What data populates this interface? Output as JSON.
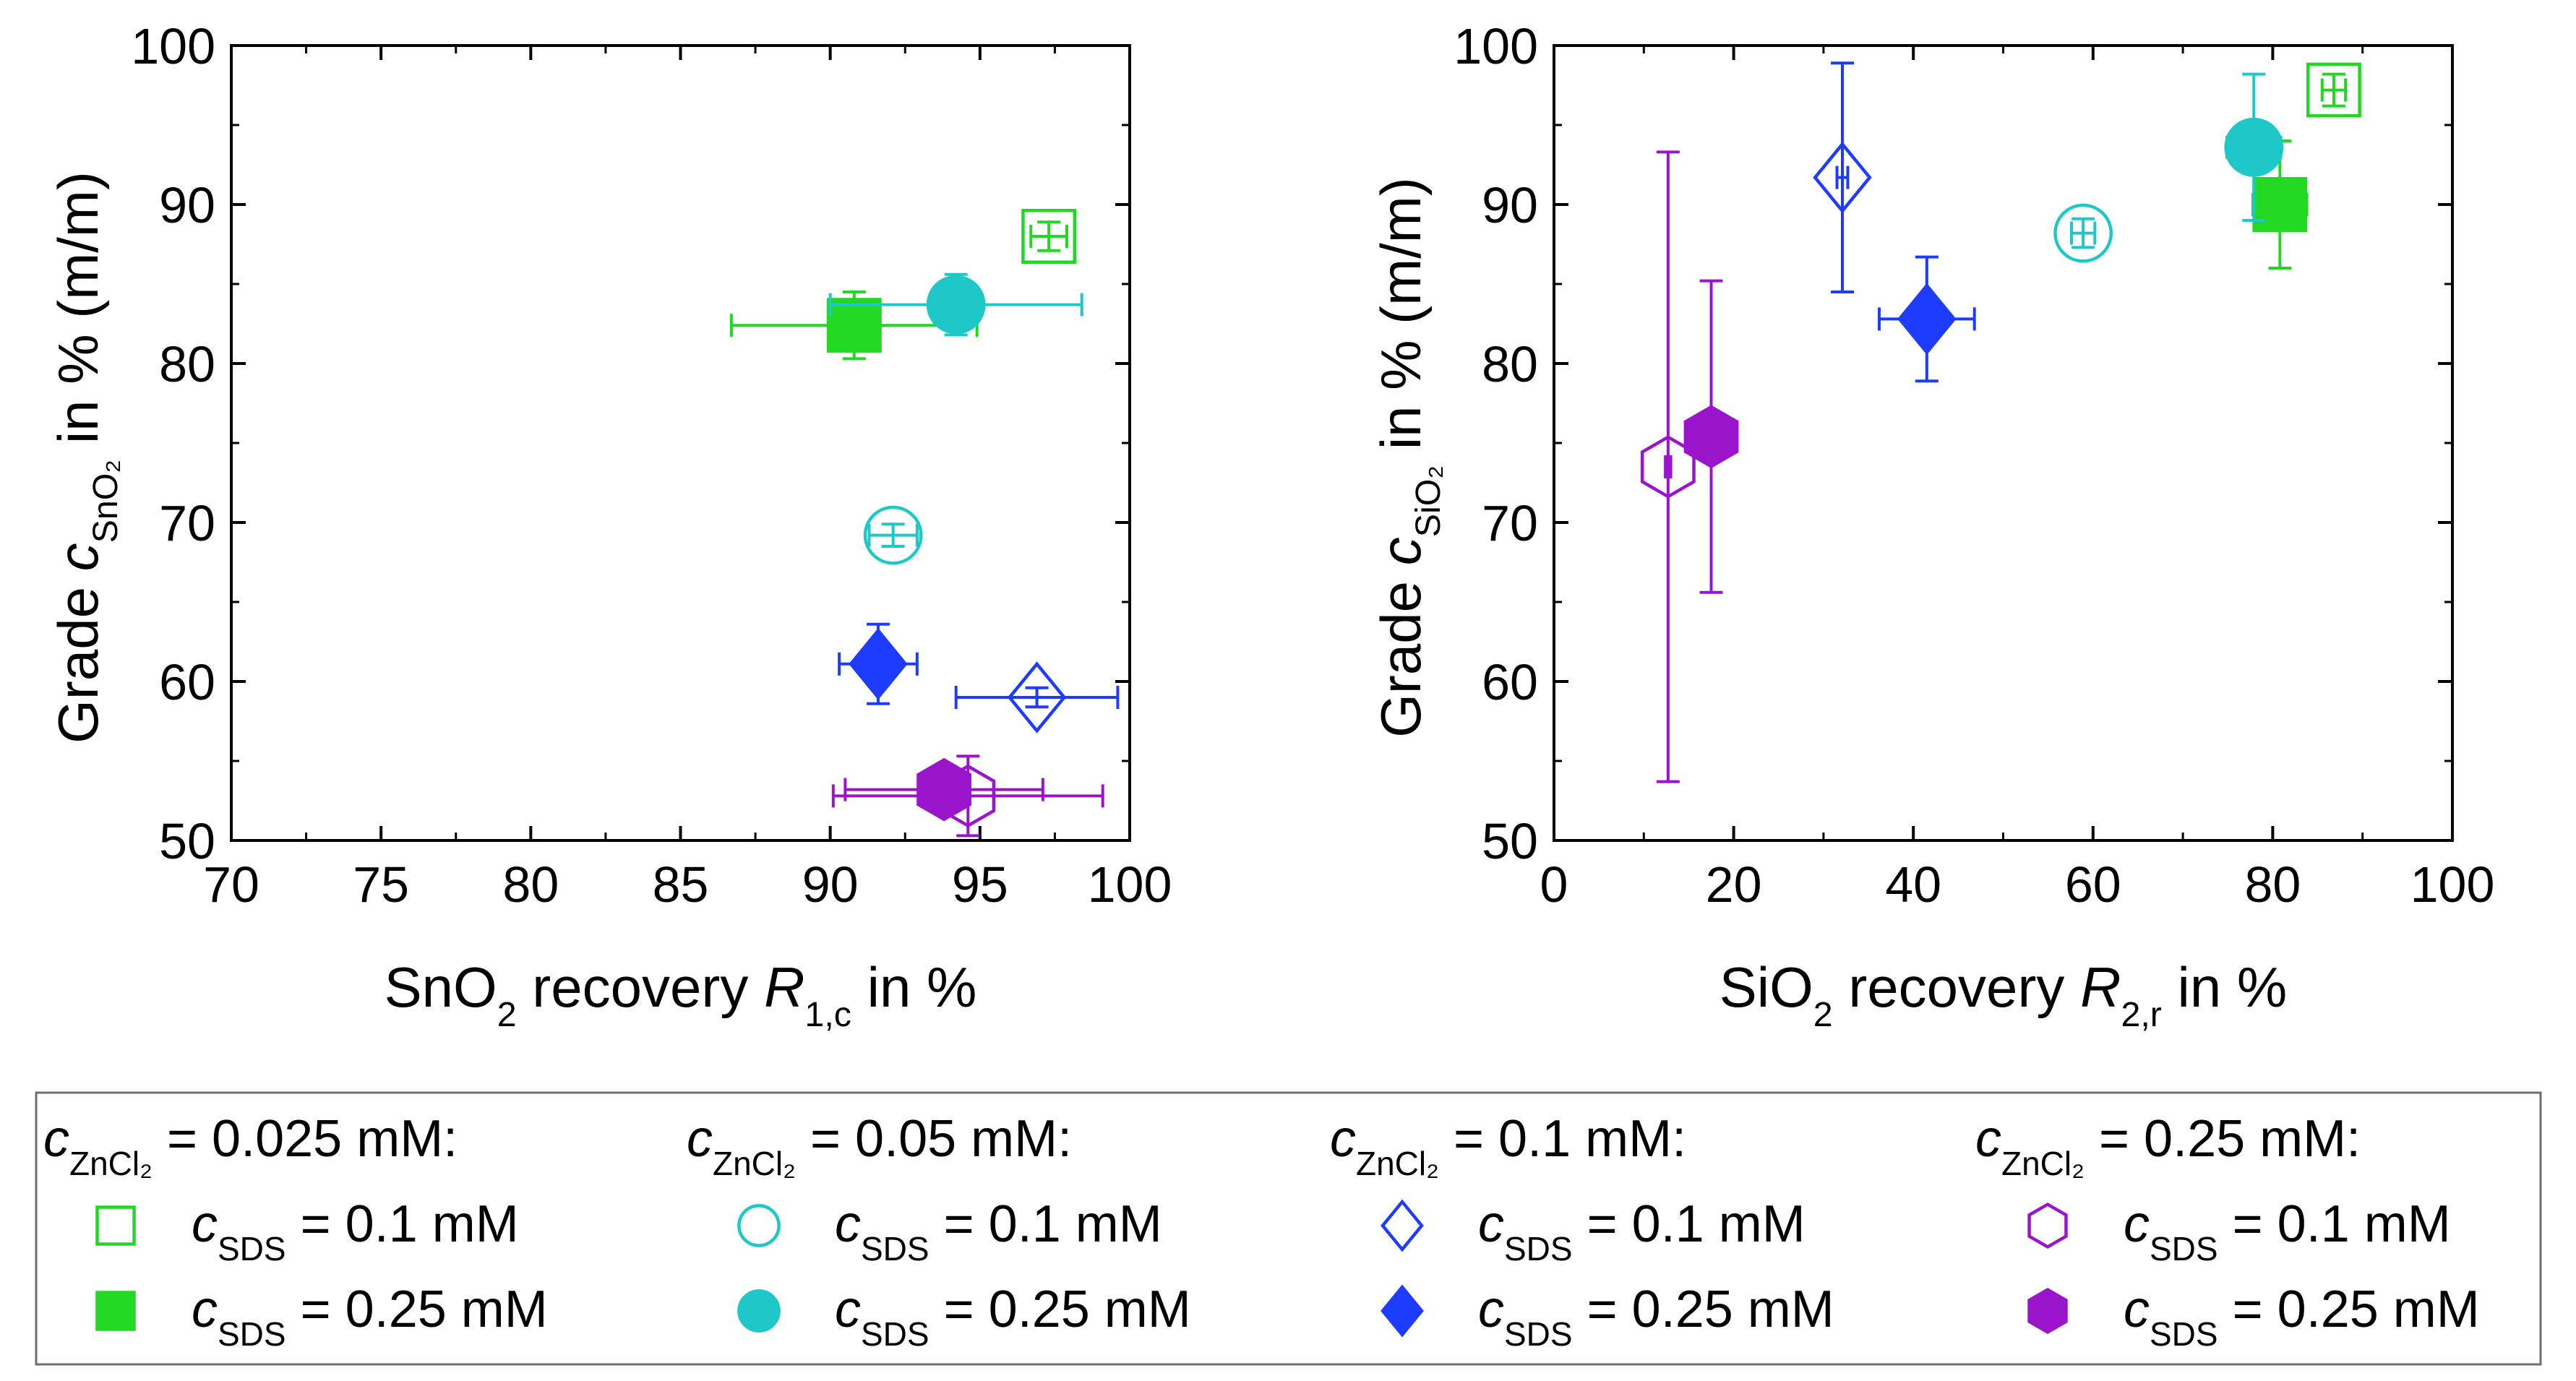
{
  "colors": {
    "green": "#22d822",
    "cyan": "#1ec8c8",
    "blue": "#1e3cff",
    "purple": "#9a14cc",
    "axis": "#000000"
  },
  "chart_data": [
    {
      "type": "scatter",
      "title": "",
      "xlabel": {
        "main": "SnO",
        "main_sub": "2",
        "rest": " recovery ",
        "var": "R",
        "var_sub": "1,c",
        "tail": " in %"
      },
      "ylabel": {
        "main": "Grade ",
        "var": "c",
        "var_sub": "SnO₂",
        "tail": " in % (m/m)"
      },
      "xlim": [
        70,
        100
      ],
      "ylim": [
        50,
        100
      ],
      "xticks": [
        70,
        75,
        80,
        85,
        90,
        95,
        100
      ],
      "yticks": [
        50,
        60,
        70,
        80,
        90,
        100
      ],
      "grid": false,
      "series": [
        {
          "name": "cZnCl2 = 0.025 mM, cSDS = 0.1 mM",
          "marker": "square",
          "fill": false,
          "color": "green",
          "x": 97.3,
          "y": 88.0,
          "xerr": [
            0.6,
            0.6
          ],
          "yerr": [
            0.9,
            0.9
          ]
        },
        {
          "name": "cZnCl2 = 0.025 mM, cSDS = 0.25 mM",
          "marker": "square",
          "fill": true,
          "color": "green",
          "x": 90.8,
          "y": 82.4,
          "xerr": [
            4.1,
            4.1
          ],
          "yerr": [
            2.1,
            2.1
          ]
        },
        {
          "name": "cZnCl2 = 0.05 mM, cSDS = 0.1 mM",
          "marker": "circle",
          "fill": false,
          "color": "cyan",
          "x": 92.1,
          "y": 69.2,
          "xerr": [
            0.8,
            0.8
          ],
          "yerr": [
            0.7,
            0.7
          ]
        },
        {
          "name": "cZnCl2 = 0.05 mM, cSDS = 0.25 mM",
          "marker": "circle",
          "fill": true,
          "color": "cyan",
          "x": 94.2,
          "y": 83.7,
          "xerr": [
            4.2,
            4.2
          ],
          "yerr": [
            1.9,
            1.9
          ]
        },
        {
          "name": "cZnCl2 = 0.1 mM, cSDS = 0.1 mM",
          "marker": "diamond",
          "fill": false,
          "color": "blue",
          "x": 96.9,
          "y": 59.0,
          "xerr": [
            2.7,
            2.7
          ],
          "yerr": [
            0.6,
            0.6
          ]
        },
        {
          "name": "cZnCl2 = 0.1 mM, cSDS = 0.25 mM",
          "marker": "diamond",
          "fill": true,
          "color": "blue",
          "x": 91.6,
          "y": 61.1,
          "xerr": [
            1.3,
            1.3
          ],
          "yerr": [
            2.5,
            2.5
          ]
        },
        {
          "name": "cZnCl2 = 0.25 mM, cSDS = 0.1 mM",
          "marker": "hexagon",
          "fill": false,
          "color": "purple",
          "x": 94.6,
          "y": 52.8,
          "xerr": [
            4.5,
            4.5
          ],
          "yerr": [
            2.5,
            2.5
          ]
        },
        {
          "name": "cZnCl2 = 0.25 mM, cSDS = 0.25 mM",
          "marker": "hexagon",
          "fill": true,
          "color": "purple",
          "x": 93.8,
          "y": 53.2,
          "xerr": [
            3.3,
            3.3
          ],
          "yerr": [
            1.0,
            1.0
          ]
        }
      ]
    },
    {
      "type": "scatter",
      "title": "",
      "xlabel": {
        "main": "SiO",
        "main_sub": "2",
        "rest": " recovery ",
        "var": "R",
        "var_sub": "2,r",
        "tail": " in %"
      },
      "ylabel": {
        "main": "Grade ",
        "var": "c",
        "var_sub": "SiO₂",
        "tail": " in % (m/m)"
      },
      "xlim": [
        0,
        100
      ],
      "ylim": [
        50,
        100
      ],
      "xticks": [
        0,
        20,
        40,
        60,
        80,
        100
      ],
      "yticks": [
        50,
        60,
        70,
        80,
        90,
        100
      ],
      "grid": false,
      "series": [
        {
          "name": "cZnCl2 = 0.025 mM, cSDS = 0.1 mM",
          "marker": "square",
          "fill": false,
          "color": "green",
          "x": 86.8,
          "y": 97.2,
          "xerr": [
            1.3,
            1.3
          ],
          "yerr": [
            1.0,
            1.0
          ]
        },
        {
          "name": "cZnCl2 = 0.025 mM, cSDS = 0.25 mM",
          "marker": "square",
          "fill": true,
          "color": "green",
          "x": 80.8,
          "y": 90.0,
          "xerr": [
            3.0,
            3.0
          ],
          "yerr": [
            4.0,
            4.0
          ]
        },
        {
          "name": "cZnCl2 = 0.05 mM, cSDS = 0.1 mM",
          "marker": "circle",
          "fill": false,
          "color": "cyan",
          "x": 58.9,
          "y": 88.2,
          "xerr": [
            1.3,
            1.3
          ],
          "yerr": [
            0.9,
            0.9
          ]
        },
        {
          "name": "cZnCl2 = 0.05 mM, cSDS = 0.25 mM",
          "marker": "circle",
          "fill": true,
          "color": "cyan",
          "x": 77.9,
          "y": 93.6,
          "xerr": [
            3.0,
            3.0
          ],
          "yerr": [
            4.6,
            4.6
          ]
        },
        {
          "name": "cZnCl2 = 0.1 mM, cSDS = 0.1 mM",
          "marker": "diamond",
          "fill": false,
          "color": "blue",
          "x": 32.1,
          "y": 91.7,
          "xerr": [
            0.6,
            0.6
          ],
          "yerr": [
            7.2,
            7.2
          ]
        },
        {
          "name": "cZnCl2 = 0.1 mM, cSDS = 0.25 mM",
          "marker": "diamond",
          "fill": true,
          "color": "blue",
          "x": 41.5,
          "y": 82.8,
          "xerr": [
            5.3,
            5.3
          ],
          "yerr": [
            3.9,
            3.9
          ]
        },
        {
          "name": "cZnCl2 = 0.25 mM, cSDS = 0.1 mM",
          "marker": "hexagon",
          "fill": false,
          "color": "purple",
          "x": 12.7,
          "y": 73.5,
          "xerr": [
            0.3,
            0.3
          ],
          "yerr": [
            19.8,
            19.8
          ]
        },
        {
          "name": "cZnCl2 = 0.25 mM, cSDS = 0.25 mM",
          "marker": "hexagon",
          "fill": true,
          "color": "purple",
          "x": 17.5,
          "y": 75.4,
          "xerr": [
            0.3,
            0.3
          ],
          "yerr": [
            9.8,
            9.8
          ]
        }
      ]
    }
  ],
  "legend": {
    "groups": [
      {
        "head_var": "c",
        "head_sub": "ZnCl₂",
        "head_tail": " = 0.025 mM:",
        "color": "green",
        "marker": "square",
        "items": [
          {
            "var": "c",
            "sub": "SDS",
            "tail": " = 0.1 mM",
            "fill": false
          },
          {
            "var": "c",
            "sub": "SDS",
            "tail": " = 0.25 mM",
            "fill": true
          }
        ]
      },
      {
        "head_var": "c",
        "head_sub": "ZnCl₂",
        "head_tail": " = 0.05 mM:",
        "color": "cyan",
        "marker": "circle",
        "items": [
          {
            "var": "c",
            "sub": "SDS",
            "tail": " = 0.1 mM",
            "fill": false
          },
          {
            "var": "c",
            "sub": "SDS",
            "tail": " = 0.25 mM",
            "fill": true
          }
        ]
      },
      {
        "head_var": "c",
        "head_sub": "ZnCl₂",
        "head_tail": " = 0.1 mM:",
        "color": "blue",
        "marker": "diamond",
        "items": [
          {
            "var": "c",
            "sub": "SDS",
            "tail": " = 0.1 mM",
            "fill": false
          },
          {
            "var": "c",
            "sub": "SDS",
            "tail": " = 0.25 mM",
            "fill": true
          }
        ]
      },
      {
        "head_var": "c",
        "head_sub": "ZnCl₂",
        "head_tail": " = 0.25 mM:",
        "color": "purple",
        "marker": "hexagon",
        "items": [
          {
            "var": "c",
            "sub": "SDS",
            "tail": " = 0.1 mM",
            "fill": false
          },
          {
            "var": "c",
            "sub": "SDS",
            "tail": " = 0.25 mM",
            "fill": true
          }
        ]
      }
    ]
  }
}
